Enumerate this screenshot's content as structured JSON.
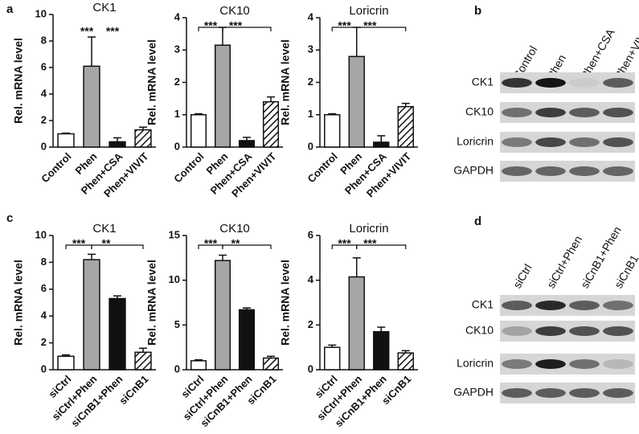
{
  "panel_labels": [
    "a",
    "b",
    "c",
    "d"
  ],
  "chart_data": [
    {
      "type": "bar",
      "title": "CK1",
      "y_label": "Rel. mRNA level",
      "categories": [
        "Control",
        "Phen",
        "Phen+CSA",
        "Phen+VIVIT"
      ],
      "values": [
        1.0,
        6.1,
        0.4,
        1.3
      ],
      "errors": [
        0.05,
        2.2,
        0.3,
        0.2
      ],
      "colors": [
        "#ffffff",
        "#a6a6a6",
        "#111111",
        "#ffffff"
      ],
      "patterns": [
        "solid",
        "solid",
        "solid",
        "hatch"
      ],
      "ylim": [
        0,
        10
      ],
      "yticks": [
        0,
        2,
        4,
        6,
        8,
        10
      ],
      "annotations": [
        "***",
        "***"
      ],
      "brackets": false
    },
    {
      "type": "bar",
      "title": "CK10",
      "y_label": "Rel. mRNA level",
      "categories": [
        "Control",
        "Phen",
        "Phen+CSA",
        "Phen+VIVIT"
      ],
      "values": [
        1.0,
        3.15,
        0.2,
        1.4
      ],
      "errors": [
        0.03,
        0.55,
        0.1,
        0.15
      ],
      "colors": [
        "#ffffff",
        "#a6a6a6",
        "#111111",
        "#ffffff"
      ],
      "patterns": [
        "solid",
        "solid",
        "solid",
        "hatch"
      ],
      "ylim": [
        0,
        4
      ],
      "yticks": [
        0,
        1,
        2,
        3,
        4
      ],
      "annotations": [
        "***",
        "***"
      ],
      "brackets": true
    },
    {
      "type": "bar",
      "title": "Loricrin",
      "y_label": "Rel. mRNA level",
      "categories": [
        "Control",
        "Phen",
        "Phen+CSA",
        "Phen+VIVIT"
      ],
      "values": [
        1.0,
        2.8,
        0.15,
        1.25
      ],
      "errors": [
        0.03,
        0.9,
        0.2,
        0.1
      ],
      "colors": [
        "#ffffff",
        "#a6a6a6",
        "#111111",
        "#ffffff"
      ],
      "patterns": [
        "solid",
        "solid",
        "solid",
        "hatch"
      ],
      "ylim": [
        0,
        4
      ],
      "yticks": [
        0,
        1,
        2,
        3,
        4
      ],
      "annotations": [
        "***",
        "***"
      ],
      "brackets": true
    },
    {
      "type": "bar",
      "title": "CK1",
      "y_label": "Rel. mRNA level",
      "categories": [
        "siCtrl",
        "siCtrl+Phen",
        "siCnB1+Phen",
        "siCnB1"
      ],
      "values": [
        1.0,
        8.2,
        5.3,
        1.3
      ],
      "errors": [
        0.1,
        0.4,
        0.2,
        0.3
      ],
      "colors": [
        "#ffffff",
        "#a6a6a6",
        "#111111",
        "#ffffff"
      ],
      "patterns": [
        "solid",
        "solid",
        "solid",
        "hatch"
      ],
      "ylim": [
        0,
        10
      ],
      "yticks": [
        0,
        2,
        4,
        6,
        8,
        10
      ],
      "annotations": [
        "***",
        "**"
      ],
      "brackets": true
    },
    {
      "type": "bar",
      "title": "CK10",
      "y_label": "Rel. mRNA level",
      "categories": [
        "siCtrl",
        "siCtrl+Phen",
        "siCnB1+Phen",
        "siCnB1"
      ],
      "values": [
        1.0,
        12.2,
        6.7,
        1.3
      ],
      "errors": [
        0.1,
        0.6,
        0.2,
        0.2
      ],
      "colors": [
        "#ffffff",
        "#a6a6a6",
        "#111111",
        "#ffffff"
      ],
      "patterns": [
        "solid",
        "solid",
        "solid",
        "hatch"
      ],
      "ylim": [
        0,
        15
      ],
      "yticks": [
        0,
        5,
        10,
        15
      ],
      "annotations": [
        "***",
        "**"
      ],
      "brackets": true
    },
    {
      "type": "bar",
      "title": "Loricrin",
      "y_label": "Rel. mRNA level",
      "categories": [
        "siCtrl",
        "siCtrl+Phen",
        "siCnB1+Phen",
        "siCnB1"
      ],
      "values": [
        1.0,
        4.15,
        1.7,
        0.75
      ],
      "errors": [
        0.1,
        0.85,
        0.2,
        0.1
      ],
      "colors": [
        "#ffffff",
        "#a6a6a6",
        "#111111",
        "#ffffff"
      ],
      "patterns": [
        "solid",
        "solid",
        "solid",
        "hatch"
      ],
      "ylim": [
        0,
        6
      ],
      "yticks": [
        0,
        2,
        4,
        6
      ],
      "annotations": [
        "***",
        "***"
      ],
      "brackets": true
    }
  ],
  "blots": [
    {
      "lanes": [
        "Control",
        "Phen",
        "Phen+CSA",
        "Phen+VIVIT"
      ],
      "rows": [
        "CK1",
        "CK10",
        "Loricrin",
        "GAPDH"
      ]
    },
    {
      "lanes": [
        "siCtrl",
        "siCtrl+Phen",
        "siCnB1+Phen",
        "siCnB1"
      ],
      "rows": [
        "CK1",
        "CK10",
        "Loricrin",
        "GAPDH"
      ]
    }
  ]
}
